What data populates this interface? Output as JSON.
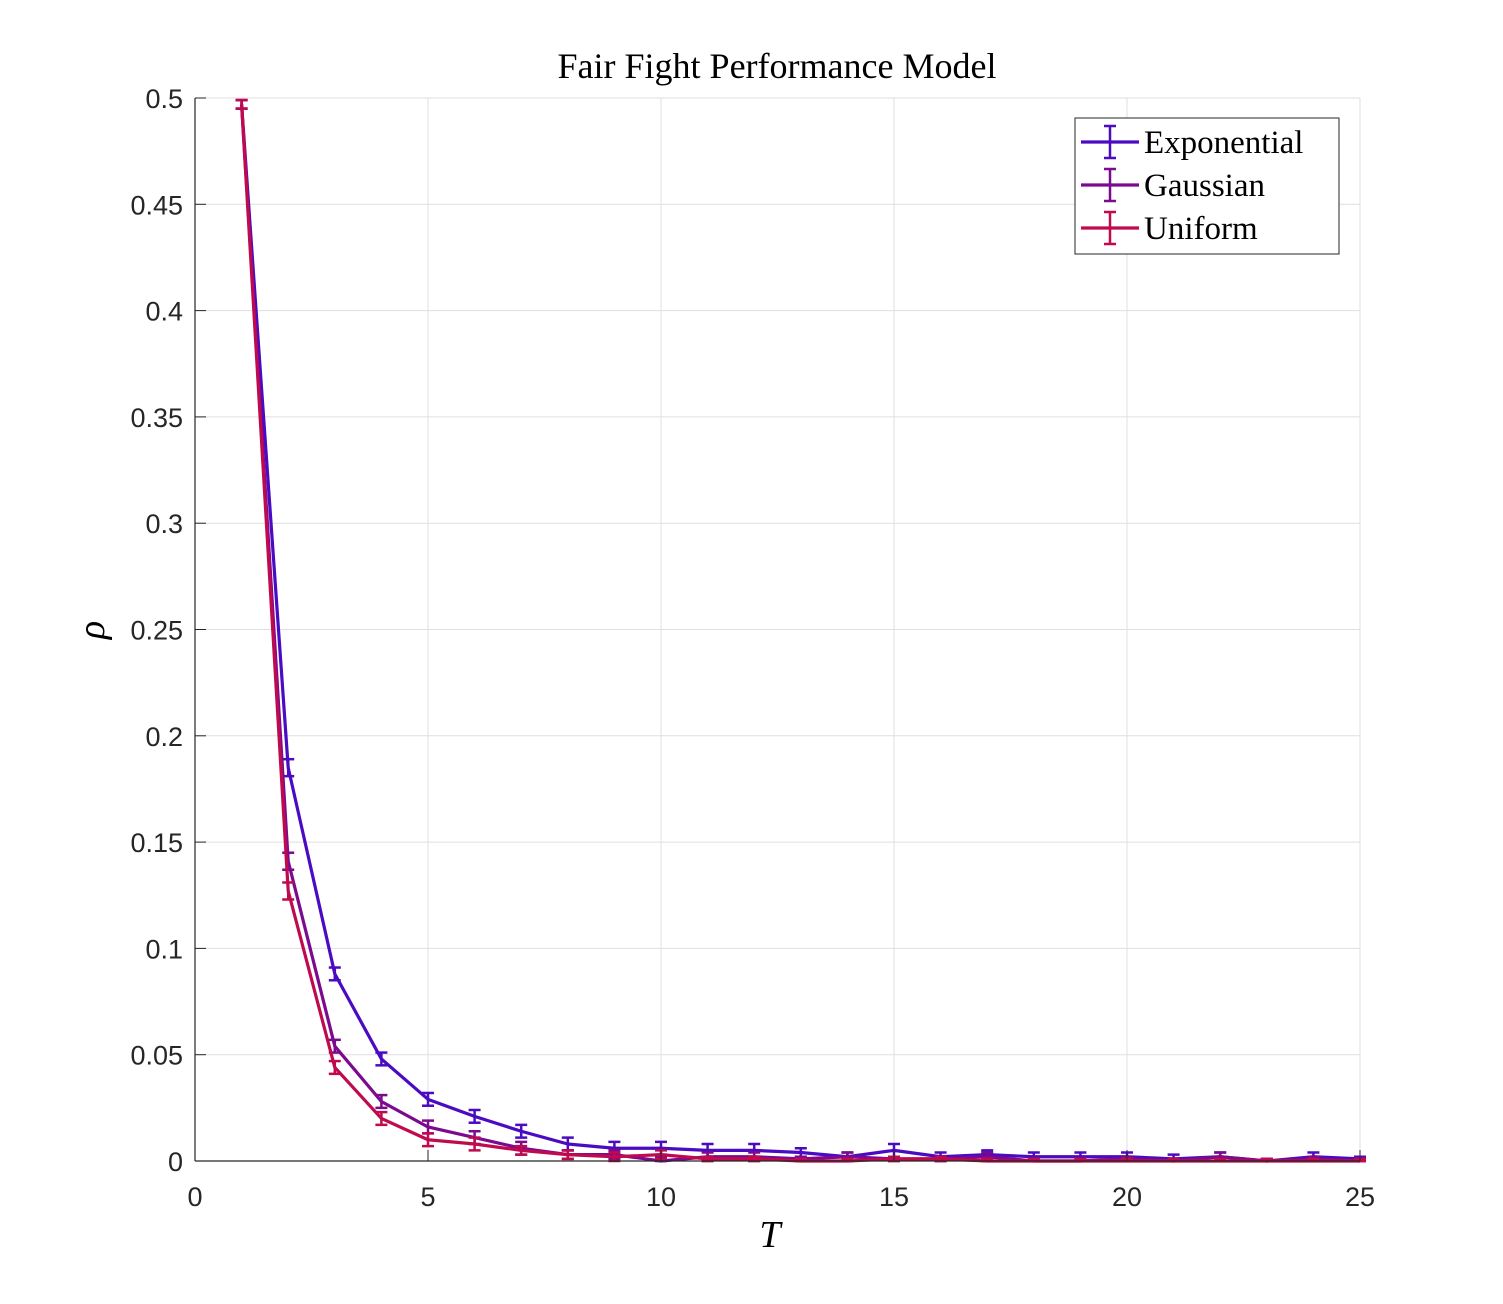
{
  "chart_data": {
    "type": "line",
    "title": "Fair Fight Performance Model",
    "xlabel": "T",
    "ylabel": "ρ",
    "xlim": [
      0,
      25
    ],
    "ylim": [
      0,
      0.5
    ],
    "x_ticks": [
      "0",
      "5",
      "10",
      "15",
      "20",
      "25"
    ],
    "y_ticks": [
      "0",
      "0.05",
      "0.1",
      "0.15",
      "0.2",
      "0.25",
      "0.3",
      "0.35",
      "0.4",
      "0.45",
      "0.5"
    ],
    "grid": true,
    "legend_position": "top-right",
    "x": [
      1,
      2,
      3,
      4,
      5,
      6,
      7,
      8,
      9,
      10,
      11,
      12,
      13,
      14,
      15,
      16,
      17,
      18,
      19,
      20,
      21,
      22,
      23,
      24,
      25
    ],
    "series": [
      {
        "name": "Exponential",
        "color": "#4A0BC2",
        "values": [
          0.497,
          0.185,
          0.088,
          0.048,
          0.029,
          0.021,
          0.014,
          0.008,
          0.006,
          0.006,
          0.005,
          0.005,
          0.004,
          0.002,
          0.005,
          0.002,
          0.003,
          0.002,
          0.002,
          0.002,
          0.001,
          0.002,
          0.0,
          0.002,
          0.001
        ],
        "errors": [
          0.002,
          0.004,
          0.003,
          0.003,
          0.003,
          0.003,
          0.003,
          0.003,
          0.003,
          0.003,
          0.003,
          0.003,
          0.002,
          0.002,
          0.003,
          0.002,
          0.002,
          0.002,
          0.002,
          0.002,
          0.002,
          0.002,
          0.001,
          0.002,
          0.001
        ]
      },
      {
        "name": "Gaussian",
        "color": "#7C0A8F",
        "values": [
          0.497,
          0.141,
          0.054,
          0.028,
          0.016,
          0.011,
          0.006,
          0.003,
          0.003,
          0.0,
          0.002,
          0.002,
          0.001,
          0.002,
          0.001,
          0.001,
          0.002,
          0.0,
          0.0,
          0.001,
          0.0,
          0.002,
          0.0,
          0.001,
          0.0
        ],
        "errors": [
          0.002,
          0.004,
          0.003,
          0.003,
          0.003,
          0.003,
          0.003,
          0.002,
          0.002,
          0.002,
          0.002,
          0.002,
          0.001,
          0.002,
          0.001,
          0.001,
          0.002,
          0.001,
          0.001,
          0.001,
          0.001,
          0.002,
          0.001,
          0.001,
          0.001
        ]
      },
      {
        "name": "Uniform",
        "color": "#BF0A4E",
        "values": [
          0.497,
          0.127,
          0.044,
          0.02,
          0.01,
          0.008,
          0.005,
          0.003,
          0.002,
          0.003,
          0.001,
          0.001,
          0.0,
          0.0,
          0.001,
          0.001,
          0.0,
          0.0,
          0.0,
          0.0,
          0.0,
          0.0,
          0.0,
          0.0,
          0.0
        ],
        "errors": [
          0.002,
          0.004,
          0.003,
          0.003,
          0.003,
          0.003,
          0.002,
          0.002,
          0.002,
          0.002,
          0.001,
          0.001,
          0.001,
          0.001,
          0.001,
          0.001,
          0.001,
          0.001,
          0.001,
          0.001,
          0.001,
          0.001,
          0.001,
          0.001,
          0.001
        ]
      }
    ]
  }
}
